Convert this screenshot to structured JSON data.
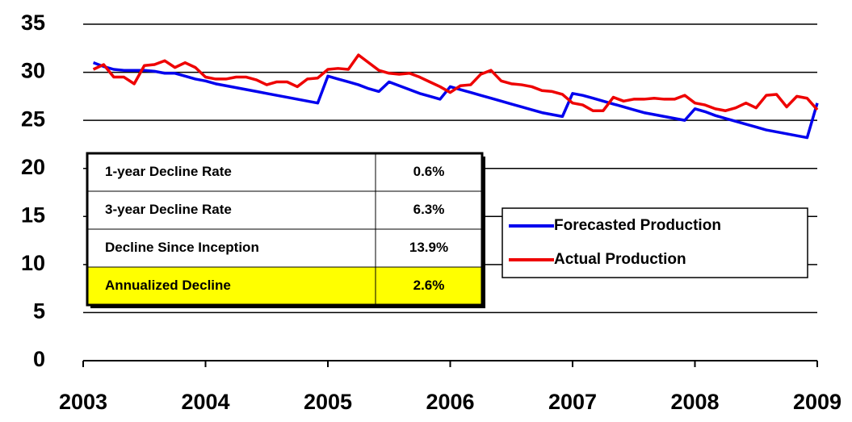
{
  "chart_data": {
    "type": "line",
    "x": [
      2003.083,
      2003.167,
      2003.25,
      2003.333,
      2003.417,
      2003.5,
      2003.583,
      2003.667,
      2003.75,
      2003.833,
      2003.917,
      2004.0,
      2004.083,
      2004.167,
      2004.25,
      2004.333,
      2004.417,
      2004.5,
      2004.583,
      2004.667,
      2004.75,
      2004.833,
      2004.917,
      2005.0,
      2005.083,
      2005.167,
      2005.25,
      2005.333,
      2005.417,
      2005.5,
      2005.583,
      2005.667,
      2005.75,
      2005.833,
      2005.917,
      2006.0,
      2006.083,
      2006.167,
      2006.25,
      2006.333,
      2006.417,
      2006.5,
      2006.583,
      2006.667,
      2006.75,
      2006.833,
      2006.917,
      2007.0,
      2007.083,
      2007.167,
      2007.25,
      2007.333,
      2007.417,
      2007.5,
      2007.583,
      2007.667,
      2007.75,
      2007.833,
      2007.917,
      2008.0,
      2008.083,
      2008.167,
      2008.25,
      2008.333,
      2008.417,
      2008.5,
      2008.583,
      2008.667,
      2008.75,
      2008.833,
      2008.917,
      2009.0
    ],
    "series": [
      {
        "name": "Forecasted Production",
        "color": "#0000ee",
        "values": [
          31.0,
          30.6,
          30.3,
          30.2,
          30.2,
          30.2,
          30.1,
          29.9,
          29.9,
          29.6,
          29.3,
          29.1,
          28.8,
          28.6,
          28.4,
          28.2,
          28.0,
          27.8,
          27.6,
          27.4,
          27.2,
          27.0,
          26.8,
          29.6,
          29.3,
          29.0,
          28.7,
          28.3,
          28.0,
          29.0,
          28.6,
          28.2,
          27.8,
          27.5,
          27.2,
          28.5,
          28.2,
          27.9,
          27.6,
          27.3,
          27.0,
          26.7,
          26.4,
          26.1,
          25.8,
          25.6,
          25.4,
          27.8,
          27.6,
          27.3,
          27.0,
          26.7,
          26.4,
          26.1,
          25.8,
          25.6,
          25.4,
          25.2,
          25.0,
          26.2,
          25.9,
          25.5,
          25.2,
          24.9,
          24.6,
          24.3,
          24.0,
          23.8,
          23.6,
          23.4,
          23.2,
          26.8
        ]
      },
      {
        "name": "Actual Production",
        "color": "#ee0000",
        "values": [
          30.3,
          30.8,
          29.5,
          29.5,
          28.8,
          30.7,
          30.8,
          31.2,
          30.5,
          31.0,
          30.5,
          29.5,
          29.3,
          29.3,
          29.5,
          29.5,
          29.2,
          28.7,
          29.0,
          29.0,
          28.5,
          29.3,
          29.4,
          30.3,
          30.4,
          30.3,
          31.8,
          31.0,
          30.2,
          29.9,
          29.8,
          29.9,
          29.5,
          29.0,
          28.5,
          27.9,
          28.6,
          28.7,
          29.8,
          30.2,
          29.1,
          28.8,
          28.7,
          28.5,
          28.1,
          28.0,
          27.7,
          26.8,
          26.6,
          26.0,
          26.0,
          27.4,
          27.0,
          27.2,
          27.2,
          27.3,
          27.2,
          27.2,
          27.6,
          26.8,
          26.6,
          26.2,
          26.0,
          26.3,
          26.8,
          26.3,
          27.6,
          27.7,
          26.4,
          27.5,
          27.3,
          26.1
        ]
      }
    ],
    "xlim": [
      2003,
      2009
    ],
    "xticks": [
      2003,
      2004,
      2005,
      2006,
      2007,
      2008,
      2009
    ],
    "ylim": [
      0,
      35
    ],
    "yticks": [
      0,
      5,
      10,
      15,
      20,
      25,
      30,
      35
    ],
    "grid": true,
    "legend": "right",
    "table": {
      "rows": [
        [
          "1-year Decline Rate",
          "0.6%"
        ],
        [
          "3-year Decline Rate",
          "6.3%"
        ],
        [
          "Decline Since Inception",
          "13.9%"
        ],
        [
          "Annualized Decline",
          "2.6%"
        ]
      ],
      "highlight_color": "#ffff00"
    }
  }
}
